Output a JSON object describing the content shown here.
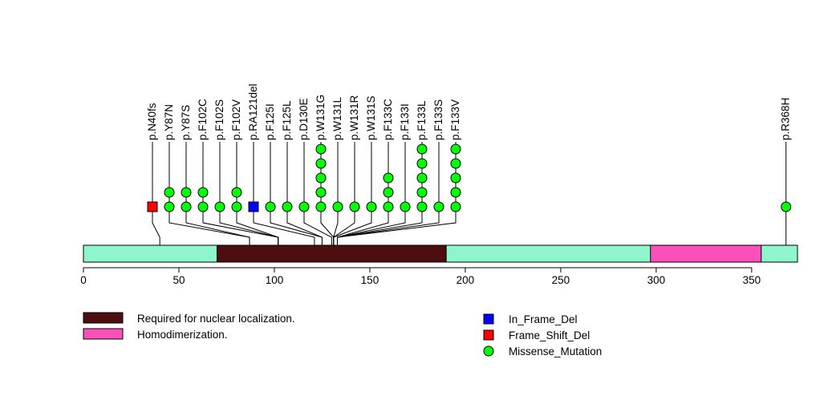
{
  "chart_data": {
    "type": "lollipop",
    "protein_length": 374,
    "xlim": [
      0,
      374
    ],
    "x_ticks": [
      0,
      50,
      100,
      150,
      200,
      250,
      300,
      350
    ],
    "x_tick_labels": [
      "0",
      "50",
      "100",
      "150",
      "200",
      "250",
      "300",
      "350"
    ],
    "backbone_color": "#8ff5cc",
    "domains": [
      {
        "name": "Required for nuclear localization.",
        "start": 70,
        "end": 190,
        "color": "#4c0e0e"
      },
      {
        "name": "Homodimerization.",
        "start": 297,
        "end": 355,
        "color": "#fb4fb9"
      }
    ],
    "mutation_types": [
      {
        "name": "In_Frame_Del",
        "shape": "square",
        "color": "#0000ff"
      },
      {
        "name": "Frame_Shift_Del",
        "shape": "square",
        "color": "#ff0000"
      },
      {
        "name": "Missense_Mutation",
        "shape": "circle",
        "color": "#00ff00"
      }
    ],
    "mutations": [
      {
        "label": "p.N40fs",
        "position": 40,
        "count": 1,
        "type": "Frame_Shift_Del"
      },
      {
        "label": "p.Y87N",
        "position": 87,
        "count": 2,
        "type": "Missense_Mutation"
      },
      {
        "label": "p.Y87S",
        "position": 87,
        "count": 2,
        "type": "Missense_Mutation"
      },
      {
        "label": "p.F102C",
        "position": 102,
        "count": 2,
        "type": "Missense_Mutation"
      },
      {
        "label": "p.F102S",
        "position": 102,
        "count": 1,
        "type": "Missense_Mutation"
      },
      {
        "label": "p.F102V",
        "position": 102,
        "count": 2,
        "type": "Missense_Mutation"
      },
      {
        "label": "p.RA121del",
        "position": 121,
        "count": 1,
        "type": "In_Frame_Del"
      },
      {
        "label": "p.F125I",
        "position": 125,
        "count": 1,
        "type": "Missense_Mutation"
      },
      {
        "label": "p.F125L",
        "position": 125,
        "count": 1,
        "type": "Missense_Mutation"
      },
      {
        "label": "p.D130E",
        "position": 130,
        "count": 1,
        "type": "Missense_Mutation"
      },
      {
        "label": "p.W131G",
        "position": 131,
        "count": 5,
        "type": "Missense_Mutation"
      },
      {
        "label": "p.W131L",
        "position": 131,
        "count": 1,
        "type": "Missense_Mutation"
      },
      {
        "label": "p.W131R",
        "position": 131,
        "count": 1,
        "type": "Missense_Mutation"
      },
      {
        "label": "p.W131S",
        "position": 131,
        "count": 1,
        "type": "Missense_Mutation"
      },
      {
        "label": "p.F133C",
        "position": 133,
        "count": 3,
        "type": "Missense_Mutation"
      },
      {
        "label": "p.F133I",
        "position": 133,
        "count": 1,
        "type": "Missense_Mutation"
      },
      {
        "label": "p.F133L",
        "position": 133,
        "count": 5,
        "type": "Missense_Mutation"
      },
      {
        "label": "p.F133S",
        "position": 133,
        "count": 1,
        "type": "Missense_Mutation"
      },
      {
        "label": "p.F133V",
        "position": 133,
        "count": 5,
        "type": "Missense_Mutation"
      },
      {
        "label": "p.R368H",
        "position": 368,
        "count": 1,
        "type": "Missense_Mutation"
      }
    ]
  }
}
